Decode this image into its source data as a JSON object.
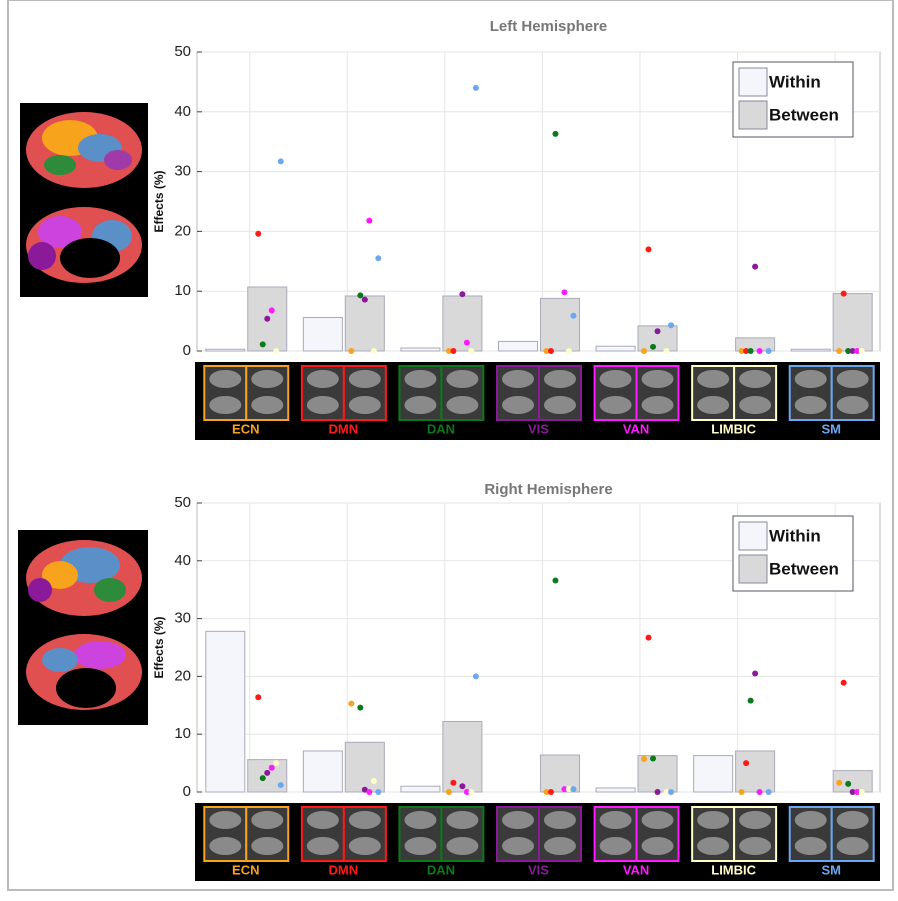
{
  "chart_data": [
    {
      "type": "bar",
      "title": "Left Hemisphere",
      "y_label": "Effects (%)",
      "categories": [
        "ECN",
        "DMN",
        "DAN",
        "VIS",
        "VAN",
        "LIMBIC",
        "SM"
      ],
      "category_colors": [
        "#f7a31c",
        "#ff1a1a",
        "#0a7a1a",
        "#8b1a9b",
        "#ff1aff",
        "#fffdc8",
        "#6ca8f0"
      ],
      "series": [
        {
          "name": "Within",
          "color": "#f4f6fb",
          "values": [
            0.3,
            5.6,
            0.5,
            1.6,
            0.8,
            0,
            0.3
          ]
        },
        {
          "name": "Between",
          "color": "#d9d9d9",
          "values": [
            10.7,
            9.2,
            9.2,
            8.8,
            4.2,
            2.2,
            9.6
          ]
        }
      ],
      "dot_values": [
        [
          null,
          0,
          0,
          0,
          0,
          0,
          0
        ],
        [
          19.6,
          null,
          0,
          0,
          17.0,
          0,
          9.6
        ],
        [
          1.1,
          9.3,
          null,
          36.3,
          0.7,
          0,
          0
        ],
        [
          5.4,
          8.6,
          9.5,
          null,
          3.3,
          14.1,
          0
        ],
        [
          6.8,
          21.8,
          1.4,
          9.8,
          null,
          0,
          0
        ],
        [
          0,
          0,
          0,
          0,
          0,
          null,
          0
        ],
        [
          31.7,
          15.5,
          44,
          5.9,
          4.3,
          0,
          null
        ]
      ],
      "ylim": [
        0,
        50
      ],
      "yticks": [
        0,
        10,
        20,
        30,
        40,
        50
      ],
      "grid": true,
      "legend": "upper right"
    },
    {
      "type": "bar",
      "title": "Right Hemisphere",
      "y_label": "Effects (%)",
      "categories": [
        "ECN",
        "DMN",
        "DAN",
        "VIS",
        "VAN",
        "LIMBIC",
        "SM"
      ],
      "category_colors": [
        "#f7a31c",
        "#ff1a1a",
        "#0a7a1a",
        "#8b1a9b",
        "#ff1aff",
        "#fffdc8",
        "#6ca8f0"
      ],
      "series": [
        {
          "name": "Within",
          "color": "#f4f6fb",
          "values": [
            27.8,
            7.1,
            1.0,
            0,
            0.7,
            6.3,
            0
          ]
        },
        {
          "name": "Between",
          "color": "#d9d9d9",
          "values": [
            5.6,
            8.6,
            12.2,
            6.4,
            6.3,
            7.1,
            3.7
          ]
        }
      ],
      "dot_values": [
        [
          null,
          15.3,
          0,
          0,
          5.7,
          0,
          1.6
        ],
        [
          16.4,
          null,
          1.6,
          0,
          26.7,
          5.0,
          18.9
        ],
        [
          2.4,
          14.6,
          null,
          36.6,
          5.8,
          15.8,
          1.4
        ],
        [
          3.3,
          0.4,
          1.0,
          null,
          0,
          20.5,
          0
        ],
        [
          4.2,
          0,
          0,
          0.5,
          null,
          0,
          0
        ],
        [
          5.0,
          1.9,
          0,
          0.5,
          0,
          null,
          0
        ],
        [
          1.2,
          0,
          20,
          0.5,
          0,
          0,
          null
        ]
      ],
      "ylim": [
        0,
        50
      ],
      "yticks": [
        0,
        10,
        20,
        30,
        40,
        50
      ],
      "grid": true,
      "legend": "upper right"
    }
  ]
}
